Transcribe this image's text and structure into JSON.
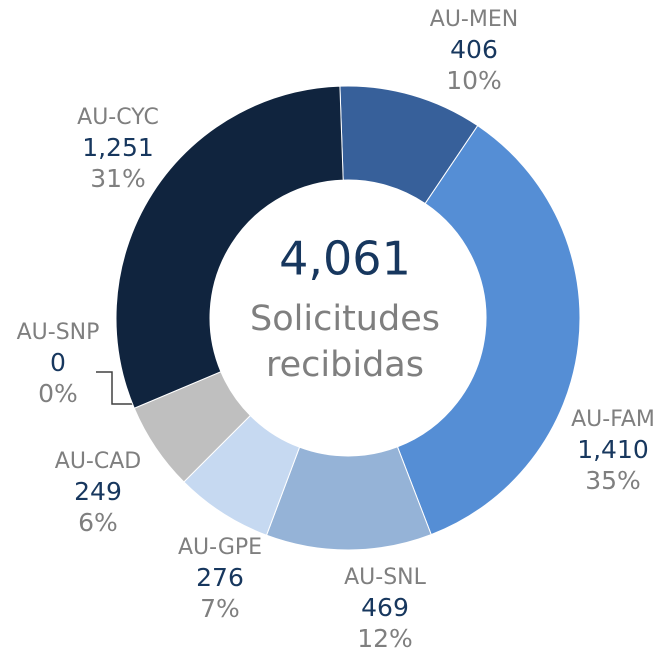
{
  "chart_data": {
    "type": "donut",
    "categories": [
      "AU-MEN",
      "AU-FAM",
      "AU-SNL",
      "AU-GPE",
      "AU-CAD",
      "AU-SNP",
      "AU-CYC"
    ],
    "values": [
      406,
      1410,
      469,
      276,
      249,
      0,
      1251
    ],
    "value_labels": [
      "406",
      "1,410",
      "469",
      "276",
      "249",
      "0",
      "1,251"
    ],
    "percents": [
      10,
      35,
      12,
      7,
      6,
      0,
      31
    ],
    "percent_labels": [
      "10%",
      "35%",
      "12%",
      "7%",
      "6%",
      "0%",
      "31%"
    ],
    "colors": [
      "#37609a",
      "#558ed5",
      "#95b3d7",
      "#c6d9f1",
      "#bfbfbf",
      "#7f7f7f",
      "#10243e"
    ],
    "total": 4061,
    "total_label": "4,061",
    "center_text": [
      "Solicitudes",
      "recibidas"
    ]
  }
}
